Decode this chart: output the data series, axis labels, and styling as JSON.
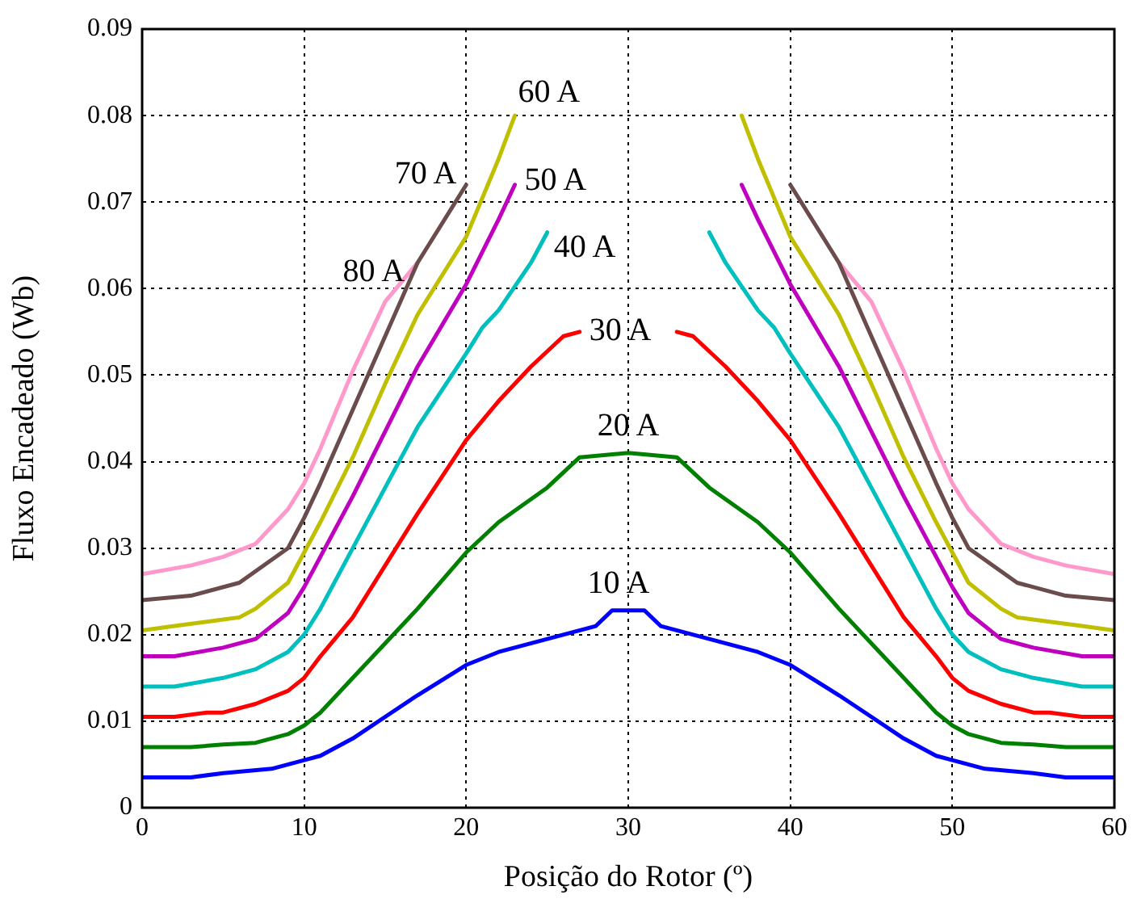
{
  "chart_data": {
    "type": "line",
    "xlabel": "Posição do Rotor (º)",
    "ylabel": "Fluxo Encadeado (Wb)",
    "xlim": [
      0,
      60
    ],
    "ylim": [
      0,
      0.09
    ],
    "xticks": [
      0,
      10,
      20,
      30,
      40,
      50,
      60
    ],
    "yticks": [
      0,
      0.01,
      0.02,
      0.03,
      0.04,
      0.05,
      0.06,
      0.07,
      0.08,
      0.09
    ],
    "grid": true,
    "series": [
      {
        "name": "10 A",
        "color": "#0000ff",
        "x": [
          0,
          3,
          5,
          8,
          10,
          11,
          13,
          15,
          17,
          20,
          22,
          25,
          28,
          29,
          31,
          32,
          35,
          38,
          40,
          43,
          45,
          47,
          49,
          50,
          52,
          55,
          57,
          60
        ],
        "values": [
          0.0035,
          0.0035,
          0.004,
          0.0045,
          0.0055,
          0.006,
          0.008,
          0.0105,
          0.013,
          0.0165,
          0.018,
          0.0195,
          0.021,
          0.0228,
          0.0228,
          0.021,
          0.0195,
          0.018,
          0.0165,
          0.013,
          0.0105,
          0.008,
          0.006,
          0.0055,
          0.0045,
          0.004,
          0.0035,
          0.0035
        ]
      },
      {
        "name": "20 A",
        "color": "#008000",
        "x": [
          0,
          3,
          5,
          7,
          9,
          10,
          11,
          13,
          15,
          17,
          20,
          22,
          25,
          27,
          30,
          33,
          35,
          38,
          40,
          43,
          45,
          47,
          49,
          50,
          51,
          53,
          55,
          57,
          60
        ],
        "values": [
          0.007,
          0.007,
          0.0073,
          0.0075,
          0.0085,
          0.0095,
          0.011,
          0.015,
          0.019,
          0.023,
          0.0295,
          0.033,
          0.037,
          0.0405,
          0.041,
          0.0405,
          0.037,
          0.033,
          0.0295,
          0.023,
          0.019,
          0.015,
          0.011,
          0.0095,
          0.0085,
          0.0075,
          0.0073,
          0.007,
          0.007
        ]
      },
      {
        "name": "30 A",
        "color": "#ff0000",
        "x": [
          0,
          2,
          4,
          5,
          7,
          9,
          10,
          11,
          13,
          15,
          17,
          20,
          22,
          24,
          26,
          27,
          30,
          33,
          34,
          36,
          38,
          40,
          43,
          45,
          47,
          49,
          50,
          51,
          53,
          55,
          56,
          58,
          60
        ],
        "values": [
          0.0105,
          0.0105,
          0.011,
          0.011,
          0.012,
          0.0135,
          0.015,
          0.0175,
          0.022,
          0.028,
          0.034,
          0.0425,
          0.047,
          0.051,
          0.0545,
          0.055,
          null,
          0.055,
          0.0545,
          0.051,
          0.047,
          0.0425,
          0.034,
          0.028,
          0.022,
          0.0175,
          0.015,
          0.0135,
          0.012,
          0.011,
          0.011,
          0.0105,
          0.0105
        ]
      },
      {
        "name": "40 A",
        "color": "#00bfbf",
        "x": [
          0,
          2,
          5,
          7,
          9,
          10,
          11,
          13,
          15,
          17,
          20,
          21,
          22,
          24,
          25,
          30,
          35,
          36,
          38,
          39,
          40,
          43,
          45,
          47,
          49,
          50,
          51,
          53,
          55,
          58,
          60
        ],
        "values": [
          0.014,
          0.014,
          0.015,
          0.016,
          0.018,
          0.02,
          0.023,
          0.03,
          0.037,
          0.044,
          0.0525,
          0.0555,
          0.0575,
          0.063,
          0.0665,
          null,
          0.0665,
          0.063,
          0.0575,
          0.0555,
          0.0525,
          0.044,
          0.037,
          0.03,
          0.023,
          0.02,
          0.018,
          0.016,
          0.015,
          0.014,
          0.014
        ]
      },
      {
        "name": "50 A",
        "color": "#bf00bf",
        "x": [
          0,
          2,
          5,
          7,
          9,
          10,
          11,
          13,
          15,
          17,
          20,
          22,
          23,
          30,
          37,
          38,
          40,
          43,
          45,
          47,
          49,
          50,
          51,
          53,
          55,
          58,
          60
        ],
        "values": [
          0.0175,
          0.0175,
          0.0185,
          0.0195,
          0.0225,
          0.0255,
          0.029,
          0.036,
          0.0435,
          0.051,
          0.0605,
          0.068,
          0.072,
          null,
          0.072,
          0.068,
          0.0605,
          0.051,
          0.0435,
          0.036,
          0.029,
          0.0255,
          0.0225,
          0.0195,
          0.0185,
          0.0175,
          0.0175
        ]
      },
      {
        "name": "60 A",
        "color": "#bfbf00",
        "x": [
          0,
          2,
          4,
          6,
          7,
          9,
          10,
          11,
          13,
          15,
          17,
          20,
          22,
          23,
          30,
          37,
          38,
          40,
          43,
          45,
          47,
          49,
          50,
          51,
          53,
          54,
          56,
          58,
          60
        ],
        "values": [
          0.0205,
          0.021,
          0.0215,
          0.022,
          0.023,
          0.026,
          0.0295,
          0.033,
          0.0405,
          0.049,
          0.057,
          0.066,
          0.075,
          0.08,
          null,
          0.08,
          0.075,
          0.066,
          0.057,
          0.049,
          0.0405,
          0.033,
          0.0295,
          0.026,
          0.023,
          0.022,
          0.0215,
          0.021,
          0.0205
        ]
      },
      {
        "name": "70 A",
        "color": "#6b4c4c",
        "x": [
          0,
          3,
          6,
          9,
          10,
          11,
          13,
          15,
          17,
          20,
          30,
          40,
          43,
          45,
          47,
          49,
          50,
          51,
          54,
          57,
          60
        ],
        "values": [
          0.024,
          0.0245,
          0.026,
          0.03,
          0.0335,
          0.0375,
          0.046,
          0.0545,
          0.063,
          0.072,
          null,
          0.072,
          0.063,
          0.0545,
          0.046,
          0.0375,
          0.0335,
          0.03,
          0.026,
          0.0245,
          0.024
        ]
      },
      {
        "name": "80 A",
        "color": "#ff99cc",
        "x": [
          0,
          3,
          5,
          7,
          9,
          10,
          11,
          13,
          15,
          17,
          30,
          43,
          45,
          47,
          49,
          50,
          51,
          53,
          55,
          57,
          60
        ],
        "values": [
          0.027,
          0.028,
          0.029,
          0.0305,
          0.0345,
          0.0375,
          0.0415,
          0.0505,
          0.0585,
          0.063,
          null,
          0.063,
          0.0585,
          0.0505,
          0.0415,
          0.0375,
          0.0345,
          0.0305,
          0.029,
          0.028,
          0.027
        ]
      }
    ]
  }
}
